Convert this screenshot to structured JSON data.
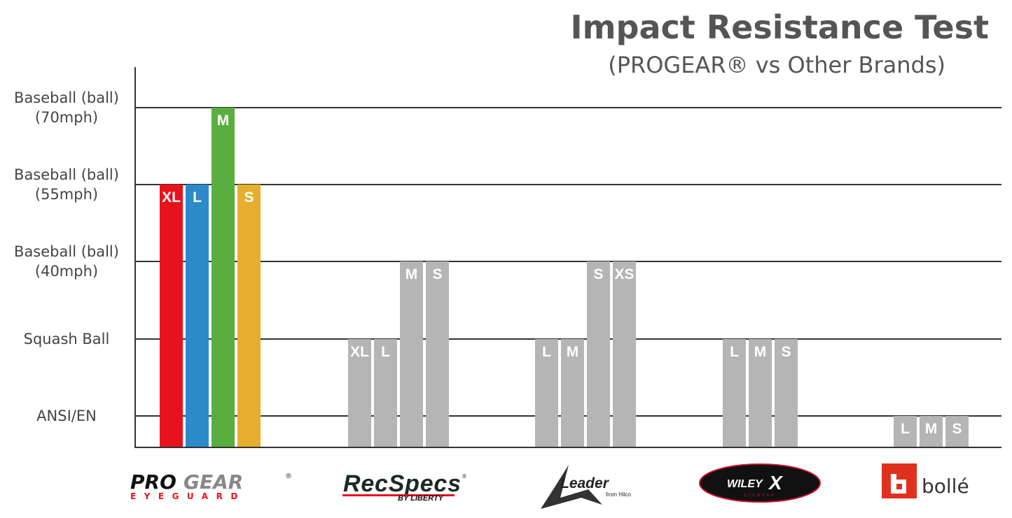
{
  "chart_data": {
    "type": "bar",
    "title": "Impact Resistance Test",
    "subtitle": "(PROGEAR® vs Other Brands)",
    "y_levels": [
      "ANSI/EN",
      "Squash Ball",
      "Baseball (ball) (40mph)",
      "Baseball (ball) (55mph)",
      "Baseball (ball) (70mph)"
    ],
    "y_level_lines": [
      [
        "ANSI/EN"
      ],
      [
        "Squash Ball"
      ],
      [
        "Baseball (ball)",
        "(40mph)"
      ],
      [
        "Baseball (ball)",
        "(55mph)"
      ],
      [
        "Baseball (ball)",
        "(70mph)"
      ]
    ],
    "grid": true,
    "groups": [
      {
        "brand": "PROGEAR",
        "bars": [
          {
            "size": "XL",
            "level": 4,
            "color": "#e8121c"
          },
          {
            "size": "L",
            "level": 4,
            "color": "#2b8bc9"
          },
          {
            "size": "M",
            "level": 5,
            "color": "#5aae3f"
          },
          {
            "size": "S",
            "level": 4,
            "color": "#e5ae2c"
          }
        ]
      },
      {
        "brand": "RecSpecs",
        "bars": [
          {
            "size": "XL",
            "level": 2,
            "color": "#b5b5b5"
          },
          {
            "size": "L",
            "level": 2,
            "color": "#b5b5b5"
          },
          {
            "size": "M",
            "level": 3,
            "color": "#b5b5b5"
          },
          {
            "size": "S",
            "level": 3,
            "color": "#b5b5b5"
          }
        ]
      },
      {
        "brand": "Leader",
        "bars": [
          {
            "size": "L",
            "level": 2,
            "color": "#b5b5b5"
          },
          {
            "size": "M",
            "level": 2,
            "color": "#b5b5b5"
          },
          {
            "size": "S",
            "level": 3,
            "color": "#b5b5b5"
          },
          {
            "size": "XS",
            "level": 3,
            "color": "#b5b5b5"
          }
        ]
      },
      {
        "brand": "Wiley X",
        "bars": [
          {
            "size": "L",
            "level": 2,
            "color": "#b5b5b5"
          },
          {
            "size": "M",
            "level": 2,
            "color": "#b5b5b5"
          },
          {
            "size": "S",
            "level": 2,
            "color": "#b5b5b5"
          }
        ]
      },
      {
        "brand": "Bollé",
        "bars": [
          {
            "size": "L",
            "level": 1,
            "color": "#b5b5b5"
          },
          {
            "size": "M",
            "level": 1,
            "color": "#b5b5b5"
          },
          {
            "size": "S",
            "level": 1,
            "color": "#b5b5b5"
          }
        ]
      }
    ]
  },
  "logos": {
    "progear": {
      "word1": "PRO",
      "word2": "GEAR",
      "reg": "®",
      "tag": "EYEGUARD"
    },
    "recspecs": {
      "word": "RecSpecs",
      "reg": "®",
      "tag": "BY LIBERTY"
    },
    "leader": {
      "letter": "L",
      "word": "eader",
      "tag": "from Hilco"
    },
    "wileyx": {
      "word": "WILEY",
      "x": "X",
      "tag": "EYEWEAR"
    },
    "bolle": {
      "word": "bollé"
    }
  }
}
